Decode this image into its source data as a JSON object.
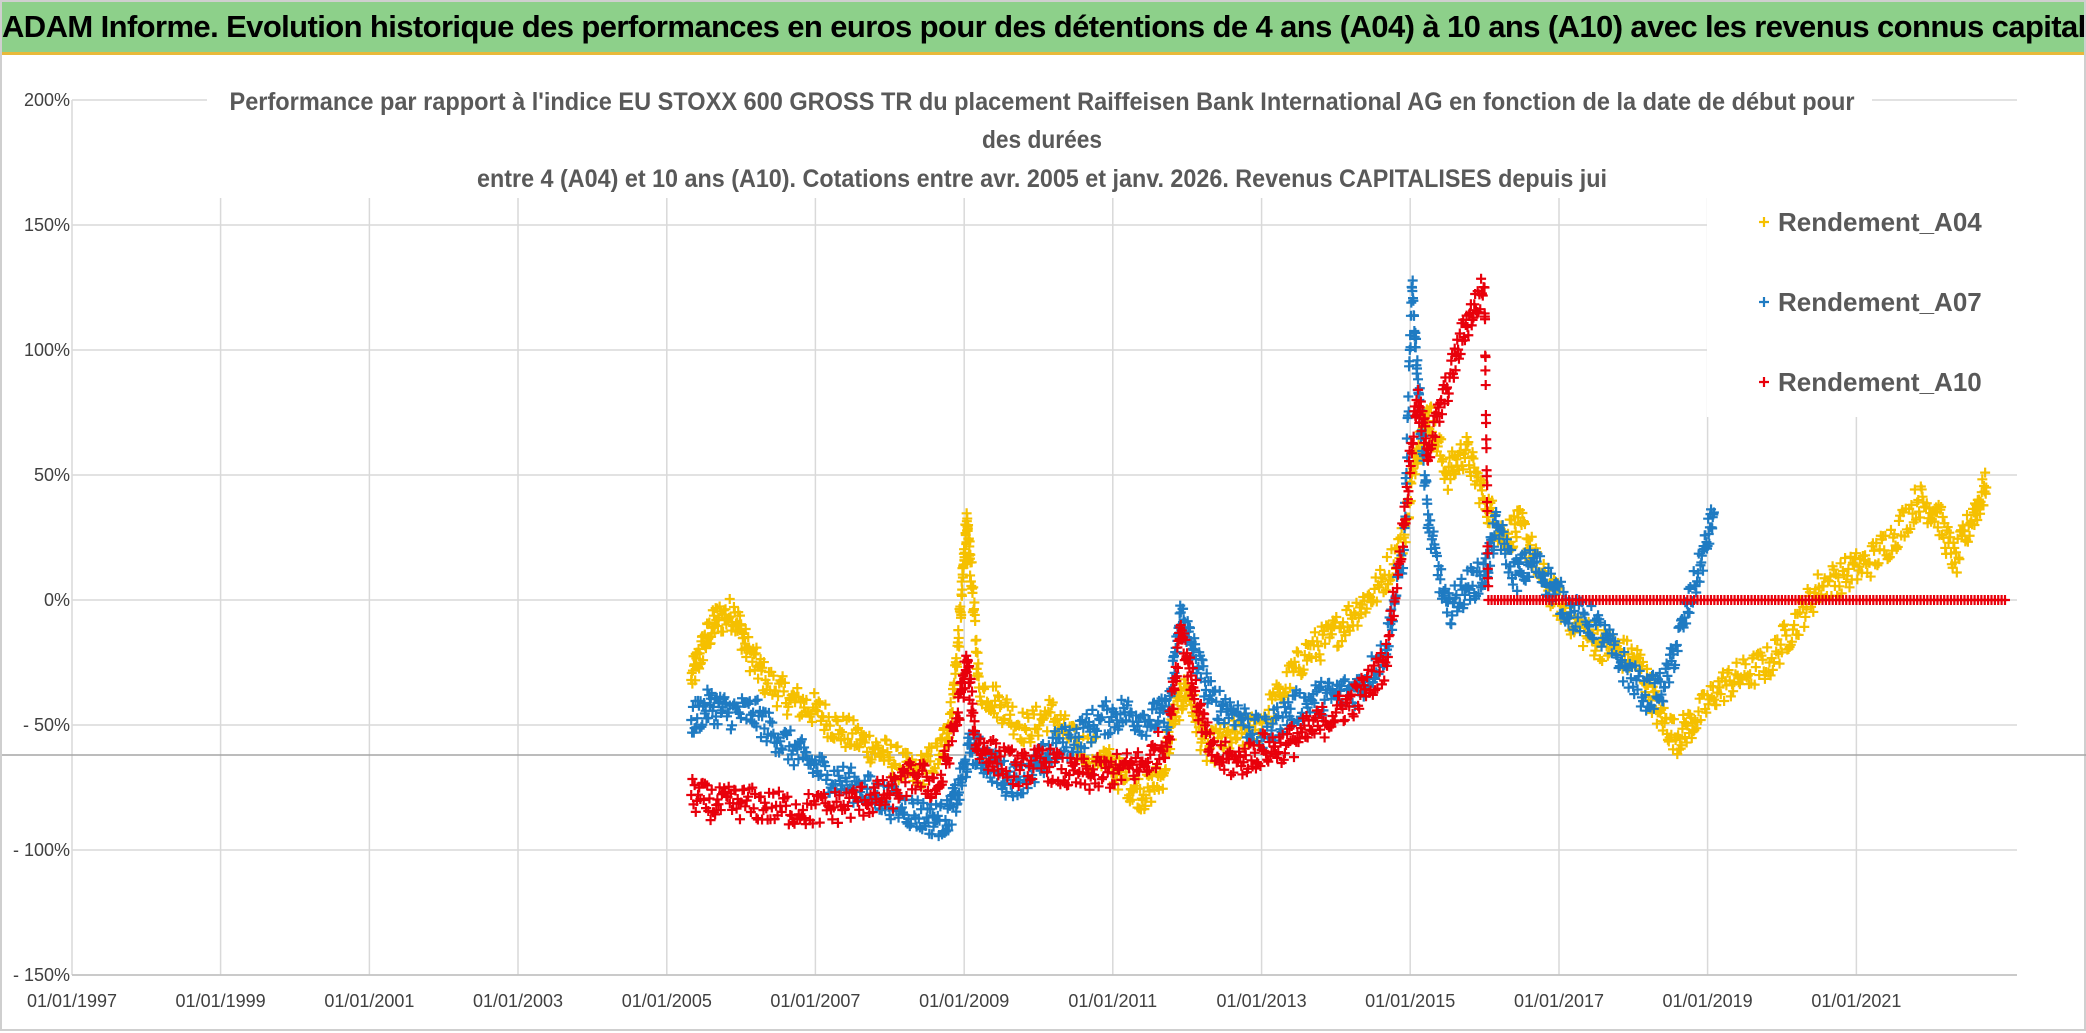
{
  "banner": {
    "title": "ADAM Informe. Evolution historique des performances en euros pour des détentions de 4 ans (A04) à 10 ans (A10) avec les revenus connus capitalisés"
  },
  "chart_data": {
    "type": "scatter",
    "title_lines": [
      "Performance par rapport à l'indice EU STOXX 600 GROSS TR  du placement Raiffeisen Bank International AG en fonction de la date de début pour",
      "des durées",
      "entre 4 (A04) et 10 ans (A10). Cotations entre avr. 2005 et janv. 2026. Revenus CAPITALISES depuis jui"
    ],
    "x_ticks": [
      "01/01/1997",
      "01/01/1999",
      "01/01/2001",
      "01/01/2003",
      "01/01/2005",
      "01/01/2007",
      "01/01/2009",
      "01/01/2011",
      "01/01/2013",
      "01/01/2015",
      "01/01/2017",
      "01/01/2019",
      "01/01/2021"
    ],
    "y_ticks": [
      "200%",
      "150%",
      "100%",
      "50%",
      "0%",
      "- 50%",
      "- 100%",
      "- 150%"
    ],
    "xlim": [
      "1997-01-01",
      "2023-03-01"
    ],
    "ylim": [
      -150,
      200
    ],
    "grid": true,
    "legend_position": "top-right",
    "series": [
      {
        "name": "Rendement_A04",
        "color": "#f5c000",
        "marker": "+",
        "points": [
          [
            "2005-05-01",
            -32
          ],
          [
            "2005-07-01",
            -18
          ],
          [
            "2005-09-01",
            -8
          ],
          [
            "2005-12-01",
            -5
          ],
          [
            "2006-02-01",
            -20
          ],
          [
            "2006-05-01",
            -32
          ],
          [
            "2006-09-01",
            -40
          ],
          [
            "2007-01-01",
            -44
          ],
          [
            "2007-05-01",
            -52
          ],
          [
            "2007-09-01",
            -57
          ],
          [
            "2008-01-01",
            -63
          ],
          [
            "2008-05-01",
            -70
          ],
          [
            "2008-09-01",
            -62
          ],
          [
            "2008-11-01",
            -45
          ],
          [
            "2008-12-15",
            -5
          ],
          [
            "2009-01-10",
            30
          ],
          [
            "2009-02-01",
            15
          ],
          [
            "2009-03-15",
            -35
          ],
          [
            "2009-07-01",
            -42
          ],
          [
            "2009-11-01",
            -52
          ],
          [
            "2010-03-01",
            -45
          ],
          [
            "2010-07-01",
            -58
          ],
          [
            "2010-11-01",
            -62
          ],
          [
            "2011-03-01",
            -72
          ],
          [
            "2011-06-01",
            -78
          ],
          [
            "2011-09-01",
            -70
          ],
          [
            "2011-11-01",
            -45
          ],
          [
            "2012-01-01",
            -35
          ],
          [
            "2012-04-01",
            -60
          ],
          [
            "2012-08-01",
            -55
          ],
          [
            "2012-12-01",
            -52
          ],
          [
            "2013-04-01",
            -38
          ],
          [
            "2013-08-01",
            -22
          ],
          [
            "2013-12-01",
            -15
          ],
          [
            "2014-04-01",
            -5
          ],
          [
            "2014-08-01",
            5
          ],
          [
            "2014-12-01",
            25
          ],
          [
            "2015-02-01",
            60
          ],
          [
            "2015-04-01",
            75
          ],
          [
            "2015-07-01",
            50
          ],
          [
            "2015-10-01",
            60
          ],
          [
            "2016-01-01",
            40
          ],
          [
            "2016-04-01",
            25
          ],
          [
            "2016-07-01",
            30
          ],
          [
            "2016-10-01",
            10
          ],
          [
            "2017-02-01",
            -5
          ],
          [
            "2017-06-01",
            -15
          ],
          [
            "2017-10-01",
            -20
          ],
          [
            "2018-02-01",
            -25
          ],
          [
            "2018-05-01",
            -45
          ],
          [
            "2018-08-01",
            -55
          ],
          [
            "2018-11-01",
            -48
          ],
          [
            "2019-03-01",
            -35
          ],
          [
            "2019-07-01",
            -30
          ],
          [
            "2019-11-01",
            -25
          ],
          [
            "2020-03-01",
            -10
          ],
          [
            "2020-07-01",
            5
          ],
          [
            "2020-11-01",
            10
          ],
          [
            "2021-03-01",
            15
          ],
          [
            "2021-07-01",
            25
          ],
          [
            "2021-11-01",
            40
          ],
          [
            "2022-02-01",
            35
          ],
          [
            "2022-05-01",
            15
          ],
          [
            "2022-08-01",
            35
          ],
          [
            "2022-10-01",
            45
          ]
        ]
      },
      {
        "name": "Rendement_A07",
        "color": "#1f7bc2",
        "marker": "+",
        "points": [
          [
            "2005-05-01",
            -48
          ],
          [
            "2005-08-01",
            -42
          ],
          [
            "2005-11-01",
            -45
          ],
          [
            "2006-03-01",
            -45
          ],
          [
            "2006-07-01",
            -55
          ],
          [
            "2006-11-01",
            -63
          ],
          [
            "2007-03-01",
            -70
          ],
          [
            "2007-07-01",
            -74
          ],
          [
            "2007-11-01",
            -78
          ],
          [
            "2008-03-01",
            -83
          ],
          [
            "2008-07-01",
            -87
          ],
          [
            "2008-10-01",
            -88
          ],
          [
            "2008-12-01",
            -78
          ],
          [
            "2009-02-01",
            -58
          ],
          [
            "2009-05-01",
            -65
          ],
          [
            "2009-08-01",
            -72
          ],
          [
            "2009-12-01",
            -70
          ],
          [
            "2010-03-01",
            -60
          ],
          [
            "2010-07-01",
            -55
          ],
          [
            "2010-11-01",
            -48
          ],
          [
            "2011-03-01",
            -45
          ],
          [
            "2011-07-01",
            -48
          ],
          [
            "2011-10-01",
            -45
          ],
          [
            "2011-12-01",
            -5
          ],
          [
            "2012-02-01",
            -20
          ],
          [
            "2012-05-01",
            -40
          ],
          [
            "2012-09-01",
            -45
          ],
          [
            "2013-01-01",
            -55
          ],
          [
            "2013-05-01",
            -45
          ],
          [
            "2013-09-01",
            -40
          ],
          [
            "2014-01-01",
            -38
          ],
          [
            "2014-05-01",
            -35
          ],
          [
            "2014-09-01",
            -20
          ],
          [
            "2014-12-01",
            20
          ],
          [
            "2015-01-10",
            125
          ],
          [
            "2015-02-15",
            80
          ],
          [
            "2015-04-01",
            30
          ],
          [
            "2015-07-01",
            -5
          ],
          [
            "2015-10-01",
            5
          ],
          [
            "2016-01-01",
            10
          ],
          [
            "2016-03-01",
            30
          ],
          [
            "2016-06-01",
            10
          ],
          [
            "2016-09-01",
            15
          ],
          [
            "2016-12-01",
            5
          ],
          [
            "2017-03-01",
            -5
          ],
          [
            "2017-07-01",
            -10
          ],
          [
            "2017-11-01",
            -25
          ],
          [
            "2018-03-01",
            -38
          ],
          [
            "2018-06-01",
            -35
          ],
          [
            "2018-09-01",
            -10
          ],
          [
            "2018-12-01",
            15
          ],
          [
            "2019-02-01",
            35
          ]
        ]
      },
      {
        "name": "Rendement_A10",
        "color": "#e8000b",
        "marker": "+",
        "points": [
          [
            "2005-05-01",
            -78
          ],
          [
            "2005-09-01",
            -82
          ],
          [
            "2006-01-01",
            -81
          ],
          [
            "2006-06-01",
            -83
          ],
          [
            "2006-11-01",
            -84
          ],
          [
            "2007-04-01",
            -83
          ],
          [
            "2007-09-01",
            -80
          ],
          [
            "2008-01-01",
            -78
          ],
          [
            "2008-05-01",
            -70
          ],
          [
            "2008-09-01",
            -75
          ],
          [
            "2008-12-01",
            -45
          ],
          [
            "2009-01-15",
            -25
          ],
          [
            "2009-03-01",
            -58
          ],
          [
            "2009-06-01",
            -63
          ],
          [
            "2009-10-01",
            -68
          ],
          [
            "2010-02-01",
            -65
          ],
          [
            "2010-06-01",
            -70
          ],
          [
            "2010-10-01",
            -70
          ],
          [
            "2011-02-01",
            -68
          ],
          [
            "2011-06-01",
            -66
          ],
          [
            "2011-10-01",
            -55
          ],
          [
            "2011-12-01",
            -10
          ],
          [
            "2012-02-01",
            -35
          ],
          [
            "2012-05-01",
            -62
          ],
          [
            "2012-09-01",
            -65
          ],
          [
            "2013-01-01",
            -60
          ],
          [
            "2013-05-01",
            -58
          ],
          [
            "2013-09-01",
            -52
          ],
          [
            "2014-01-01",
            -45
          ],
          [
            "2014-05-01",
            -38
          ],
          [
            "2014-09-01",
            -25
          ],
          [
            "2014-12-01",
            30
          ],
          [
            "2015-02-01",
            80
          ],
          [
            "2015-04-01",
            60
          ],
          [
            "2015-07-01",
            85
          ],
          [
            "2015-10-01",
            110
          ],
          [
            "2016-01-01",
            125
          ],
          [
            "2016-01-20",
            0
          ],
          [
            "2017-01-01",
            0
          ],
          [
            "2018-01-01",
            0
          ],
          [
            "2019-01-01",
            0
          ],
          [
            "2020-01-01",
            0
          ],
          [
            "2021-01-01",
            0
          ],
          [
            "2022-01-01",
            0
          ],
          [
            "2023-01-01",
            0
          ]
        ]
      }
    ]
  }
}
